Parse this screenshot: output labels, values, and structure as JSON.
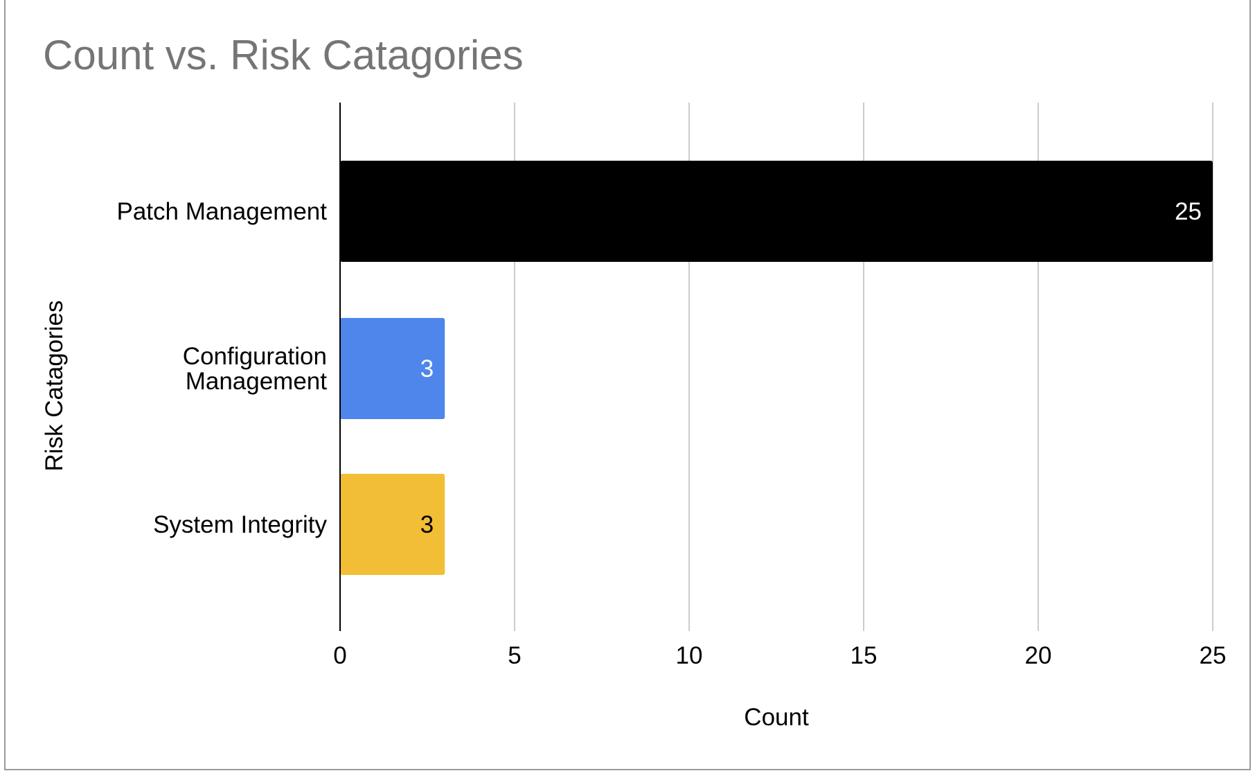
{
  "chart_data": {
    "type": "bar",
    "orientation": "horizontal",
    "title": "Count vs. Risk Catagories",
    "xlabel": "Count",
    "ylabel": "Risk Catagories",
    "categories": [
      [
        "Patch Management"
      ],
      [
        "Configuration",
        "Management"
      ],
      [
        "System Integrity"
      ]
    ],
    "values": [
      25,
      3,
      3
    ],
    "bar_colors": [
      "#000000",
      "#4f86ec",
      "#f2be36"
    ],
    "data_label_colors": [
      "#ffffff",
      "#ffffff",
      "#000000"
    ],
    "xlim": [
      0,
      25
    ],
    "xticks": [
      0,
      5,
      10,
      15,
      20,
      25
    ],
    "grid": true,
    "legend": "none"
  }
}
